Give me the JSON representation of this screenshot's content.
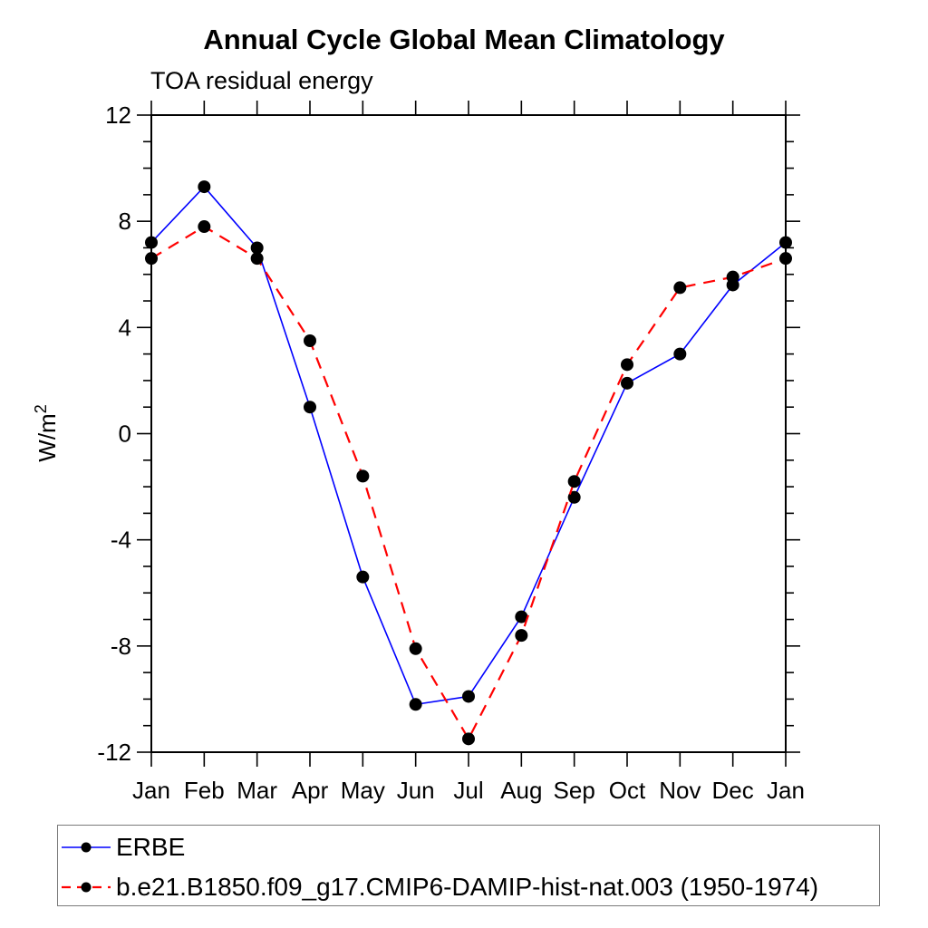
{
  "chart_data": {
    "type": "line",
    "title": "Annual Cycle Global Mean Climatology",
    "subtitle": "TOA residual energy",
    "ylabel": "W/m²",
    "xlabel": "",
    "x_tick_labels": [
      "Jan",
      "Feb",
      "Mar",
      "Apr",
      "May",
      "Jun",
      "Jul",
      "Aug",
      "Sep",
      "Oct",
      "Nov",
      "Dec",
      "Jan"
    ],
    "ylim": [
      -12,
      12
    ],
    "y_major_ticks": [
      -12,
      -8,
      -4,
      0,
      4,
      8,
      12
    ],
    "y_minor_step": 1,
    "grid": false,
    "legend_position": "bottom-box",
    "frame_color": "#000000",
    "text_color": "#000000",
    "series": [
      {
        "name": "ERBE",
        "color": "#0000ff",
        "style": "solid",
        "marker": "circle",
        "marker_color": "#000000",
        "values": [
          7.2,
          9.3,
          7.0,
          1.0,
          -5.4,
          -10.2,
          -9.9,
          -6.9,
          -2.4,
          1.9,
          3.0,
          5.6,
          7.2
        ]
      },
      {
        "name": "b.e21.B1850.f09_g17.CMIP6-DAMIP-hist-nat.003 (1950-1974)",
        "color": "#ff0000",
        "style": "dashed",
        "marker": "circle",
        "marker_color": "#000000",
        "values": [
          6.6,
          7.8,
          6.6,
          3.5,
          -1.6,
          -8.1,
          -11.5,
          -7.6,
          -1.8,
          2.6,
          5.5,
          5.9,
          6.6
        ]
      }
    ]
  }
}
